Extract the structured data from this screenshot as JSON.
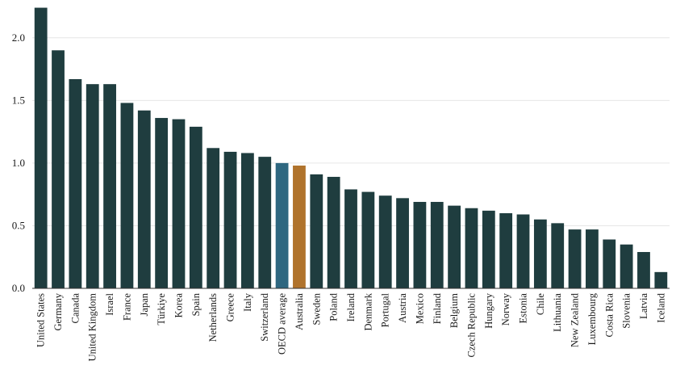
{
  "chart_data": {
    "type": "bar",
    "title": "",
    "xlabel": "",
    "ylabel": "",
    "ylim": [
      0,
      2.25
    ],
    "yticks": [
      "0.0",
      "0.5",
      "1.0",
      "1.5",
      "2.0"
    ],
    "grid": true,
    "legend": "none",
    "categories": [
      "United States",
      "Germany",
      "Canada",
      "United Kingdom",
      "Israel",
      "France",
      "Japan",
      "Türkiye",
      "Korea",
      "Spain",
      "Netherlands",
      "Greece",
      "Italy",
      "Switzerland",
      "OECD average",
      "Australia",
      "Sweden",
      "Poland",
      "Ireland",
      "Denmark",
      "Portugal",
      "Austria",
      "Mexico",
      "Finland",
      "Belgium",
      "Czech Republic",
      "Hungary",
      "Norway",
      "Estonia",
      "Chile",
      "Lithuania",
      "New Zealand",
      "Luxembourg",
      "Costa Rica",
      "Slovenia",
      "Latvia",
      "Iceland"
    ],
    "values": [
      2.24,
      1.9,
      1.67,
      1.63,
      1.63,
      1.48,
      1.42,
      1.36,
      1.35,
      1.29,
      1.12,
      1.09,
      1.08,
      1.05,
      1.0,
      0.98,
      0.91,
      0.89,
      0.79,
      0.77,
      0.74,
      0.72,
      0.69,
      0.69,
      0.66,
      0.64,
      0.62,
      0.6,
      0.59,
      0.55,
      0.52,
      0.47,
      0.47,
      0.39,
      0.35,
      0.29,
      0.13
    ],
    "colors": {
      "default": "#1f3d3f",
      "OECD average": "#2e6780",
      "Australia": "#b0732c"
    }
  }
}
